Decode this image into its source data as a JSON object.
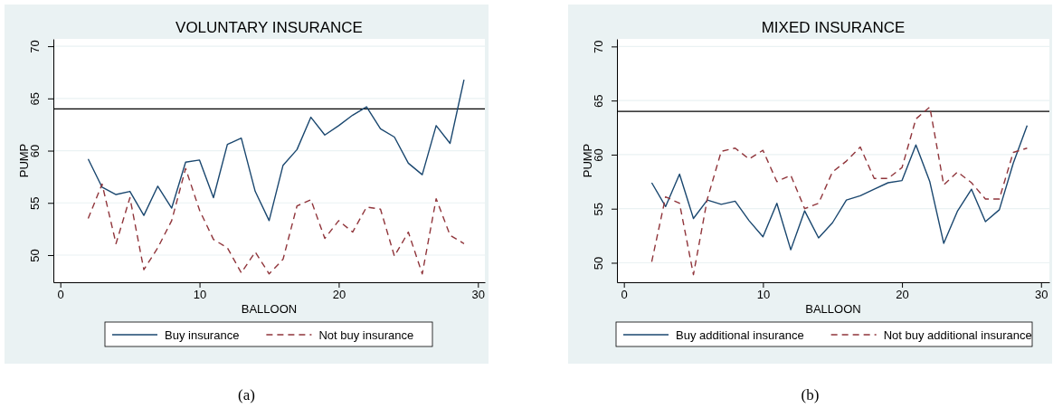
{
  "chart_data": [
    {
      "type": "line",
      "title": "VOLUNTARY INSURANCE",
      "xlabel": "BALLOON",
      "ylabel": "PUMP",
      "annotations": [
        "(a)"
      ],
      "x": [
        2,
        3,
        4,
        5,
        6,
        7,
        8,
        9,
        10,
        11,
        12,
        13,
        14,
        15,
        16,
        17,
        18,
        19,
        20,
        21,
        22,
        23,
        24,
        25,
        26,
        27,
        28,
        29
      ],
      "series": [
        {
          "name": "Buy insurance",
          "color": "#1a476f",
          "line_style": "solid",
          "values": [
            59.2,
            56.5,
            55.8,
            56.1,
            53.8,
            56.6,
            54.5,
            58.9,
            59.1,
            55.5,
            60.6,
            61.2,
            56.1,
            53.3,
            58.6,
            60.1,
            63.2,
            61.5,
            62.4,
            63.4,
            64.2,
            62.1,
            61.3,
            58.8,
            57.7,
            62.4,
            60.7,
            66.8
          ]
        },
        {
          "name": "Not buy insurance",
          "color": "#90353b",
          "line_style": "dashed",
          "values": [
            53.5,
            56.8,
            51.1,
            55.5,
            48.6,
            50.7,
            53.3,
            58.3,
            54.3,
            51.5,
            50.7,
            48.3,
            50.3,
            48.2,
            49.6,
            54.7,
            55.3,
            51.6,
            53.3,
            52.2,
            54.6,
            54.4,
            49.9,
            52.2,
            48.2,
            55.4,
            51.9,
            51.1
          ]
        }
      ],
      "xlim": [
        -0.5,
        30.5
      ],
      "ylim": [
        47.4,
        70.7
      ],
      "xticks": [
        0,
        10,
        20,
        30
      ],
      "yticks": [
        50,
        55,
        60,
        65,
        70
      ],
      "ref_lines": [
        {
          "axis": "y",
          "value": 64,
          "color": "#000000"
        }
      ],
      "grid": "y",
      "legend": "bottom",
      "marker": "none"
    },
    {
      "type": "line",
      "title": "MIXED INSURANCE",
      "xlabel": "BALLOON",
      "ylabel": "PUMP",
      "annotations": [
        "(b)"
      ],
      "x": [
        2,
        3,
        4,
        5,
        6,
        7,
        8,
        9,
        10,
        11,
        12,
        13,
        14,
        15,
        16,
        17,
        18,
        19,
        20,
        21,
        22,
        23,
        24,
        25,
        26,
        27,
        28,
        29
      ],
      "series": [
        {
          "name": "Buy additional insurance",
          "color": "#1a476f",
          "line_style": "solid",
          "values": [
            57.4,
            55.2,
            58.2,
            54.1,
            55.8,
            55.4,
            55.7,
            53.9,
            52.4,
            55.5,
            51.2,
            54.8,
            52.3,
            53.7,
            55.8,
            56.2,
            56.8,
            57.4,
            57.6,
            60.9,
            57.5,
            51.8,
            54.8,
            56.8,
            53.8,
            54.9,
            59.2,
            62.7
          ]
        },
        {
          "name": "Not buy additional insurance",
          "color": "#90353b",
          "line_style": "dashed",
          "values": [
            50.1,
            56.1,
            55.5,
            48.9,
            55.9,
            60.3,
            60.6,
            59.6,
            60.4,
            57.5,
            58.1,
            55.0,
            55.5,
            58.4,
            59.4,
            60.7,
            57.8,
            57.8,
            58.8,
            63.3,
            64.4,
            57.2,
            58.4,
            57.4,
            55.9,
            55.9,
            60.2,
            60.6
          ]
        }
      ],
      "xlim": [
        -0.5,
        30.6
      ],
      "ylim": [
        48.2,
        70.7
      ],
      "xticks": [
        0,
        10,
        20,
        30
      ],
      "yticks": [
        50,
        55,
        60,
        65,
        70
      ],
      "ref_lines": [
        {
          "axis": "y",
          "value": 64,
          "color": "#000000"
        }
      ],
      "grid": "y",
      "legend": "bottom",
      "marker": "none"
    }
  ]
}
